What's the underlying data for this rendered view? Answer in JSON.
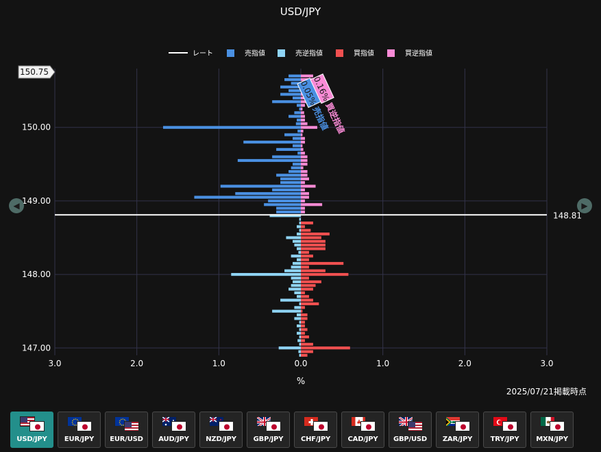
{
  "chart_data": {
    "type": "bar",
    "title": "USD/JPY",
    "xlabel": "%",
    "x_ticks": [
      "3.0",
      "2.0",
      "1.0",
      "0.0",
      "1.0",
      "2.0",
      "3.0"
    ],
    "xlim": [
      -3,
      3
    ],
    "y_ticks": [
      "147.00",
      "148.00",
      "149.00",
      "150.00"
    ],
    "ylim": [
      146.9,
      150.8
    ],
    "grid": true,
    "legend_position": "top",
    "legend": [
      "レート",
      "売指値",
      "売逆指値",
      "買指値",
      "買逆指値"
    ],
    "rate": 148.81,
    "rate_label": "148.81",
    "top_badge": "150.75",
    "annotations": [
      {
        "pct": "0.05%",
        "label": "売指値"
      },
      {
        "pct": "0.16%",
        "label": "買逆指値"
      }
    ],
    "series": [
      {
        "name": "売指値",
        "color": "#4a90e2",
        "side": "left",
        "prices": [
          150.7,
          150.65,
          150.6,
          150.55,
          150.5,
          150.45,
          150.4,
          150.35,
          150.3,
          150.25,
          150.2,
          150.15,
          150.1,
          150.05,
          150.0,
          149.95,
          149.9,
          149.85,
          149.8,
          149.75,
          149.7,
          149.65,
          149.6,
          149.55,
          149.5,
          149.45,
          149.4,
          149.35,
          149.3,
          149.25,
          149.2,
          149.15,
          149.1,
          149.05,
          149.0,
          148.95,
          148.9,
          148.85
        ],
        "values": [
          0.15,
          0.2,
          0.12,
          0.25,
          0.15,
          0.25,
          0.1,
          0.35,
          0.05,
          0.02,
          0.08,
          0.15,
          0.05,
          0.06,
          1.68,
          0.04,
          0.2,
          0.1,
          0.7,
          0.1,
          0.3,
          0.04,
          0.35,
          0.77,
          0.1,
          0.12,
          0.15,
          0.3,
          0.25,
          0.25,
          0.98,
          0.35,
          0.8,
          1.3,
          0.4,
          0.45,
          0.3,
          0.3
        ]
      },
      {
        "name": "売逆指値",
        "color": "#8fd4f5",
        "side": "left",
        "prices": [
          148.8,
          148.75,
          148.7,
          148.65,
          148.6,
          148.55,
          148.5,
          148.45,
          148.4,
          148.35,
          148.3,
          148.25,
          148.2,
          148.15,
          148.1,
          148.05,
          148.0,
          147.95,
          147.9,
          147.85,
          147.8,
          147.75,
          147.7,
          147.65,
          147.6,
          147.55,
          147.5,
          147.45,
          147.4,
          147.35,
          147.3,
          147.25,
          147.2,
          147.15,
          147.1,
          147.05,
          147.0,
          146.95,
          146.9
        ],
        "values": [
          0.38,
          0.02,
          0.02,
          0.05,
          0.02,
          0.05,
          0.18,
          0.1,
          0.08,
          0.05,
          0.03,
          0.12,
          0.05,
          0.1,
          0.12,
          0.2,
          0.85,
          0.12,
          0.1,
          0.12,
          0.15,
          0.08,
          0.05,
          0.25,
          0.02,
          0.08,
          0.35,
          0.05,
          0.08,
          0.02,
          0.05,
          0.02,
          0.05,
          0.02,
          0.04,
          0.02,
          0.27,
          0.03,
          0.02
        ]
      },
      {
        "name": "買指値",
        "color": "#f05050",
        "side": "right",
        "prices": [
          148.7,
          148.65,
          148.6,
          148.55,
          148.5,
          148.45,
          148.4,
          148.35,
          148.3,
          148.25,
          148.2,
          148.15,
          148.1,
          148.05,
          148.0,
          147.95,
          147.9,
          147.85,
          147.8,
          147.75,
          147.7,
          147.65,
          147.6,
          147.55,
          147.5,
          147.45,
          147.4,
          147.35,
          147.3,
          147.25,
          147.2,
          147.15,
          147.1,
          147.05,
          147.0,
          146.95,
          146.9
        ],
        "values": [
          0.15,
          0.05,
          0.12,
          0.35,
          0.25,
          0.3,
          0.3,
          0.3,
          0.1,
          0.15,
          0.1,
          0.52,
          0.1,
          0.3,
          0.58,
          0.1,
          0.25,
          0.18,
          0.15,
          0.05,
          0.1,
          0.15,
          0.22,
          0.05,
          0.02,
          0.08,
          0.08,
          0.05,
          0.05,
          0.08,
          0.05,
          0.1,
          0.05,
          0.15,
          0.6,
          0.15,
          0.08
        ]
      },
      {
        "name": "買逆指値",
        "color": "#f98bd6",
        "side": "right",
        "prices": [
          150.7,
          150.65,
          150.6,
          150.55,
          150.5,
          150.45,
          150.4,
          150.35,
          150.3,
          150.25,
          150.2,
          150.15,
          150.1,
          150.05,
          150.0,
          149.95,
          149.9,
          149.85,
          149.8,
          149.75,
          149.7,
          149.65,
          149.6,
          149.55,
          149.5,
          149.45,
          149.4,
          149.35,
          149.3,
          149.25,
          149.2,
          149.15,
          149.1,
          149.05,
          149.0,
          148.95,
          148.9,
          148.85
        ],
        "values": [
          0.15,
          0.18,
          0.12,
          0.1,
          0.08,
          0.15,
          0.06,
          0.1,
          0.05,
          0.02,
          0.04,
          0.05,
          0.05,
          0.08,
          0.2,
          0.03,
          0.02,
          0.05,
          0.05,
          0.02,
          0.03,
          0.05,
          0.08,
          0.08,
          0.08,
          0.03,
          0.08,
          0.08,
          0.1,
          0.05,
          0.18,
          0.05,
          0.1,
          0.1,
          0.05,
          0.26,
          0.05,
          0.05
        ]
      }
    ]
  },
  "timestamp": "2025/07/21掲載時点",
  "pairs": [
    {
      "label": "USD/JPY",
      "f1": "us",
      "f2": "jp",
      "active": true
    },
    {
      "label": "EUR/JPY",
      "f1": "eu",
      "f2": "jp",
      "active": false
    },
    {
      "label": "EUR/USD",
      "f1": "eu",
      "f2": "us",
      "active": false
    },
    {
      "label": "AUD/JPY",
      "f1": "au",
      "f2": "jp",
      "active": false
    },
    {
      "label": "NZD/JPY",
      "f1": "nz",
      "f2": "jp",
      "active": false
    },
    {
      "label": "GBP/JPY",
      "f1": "gb",
      "f2": "jp",
      "active": false
    },
    {
      "label": "CHF/JPY",
      "f1": "ch",
      "f2": "jp",
      "active": false
    },
    {
      "label": "CAD/JPY",
      "f1": "ca",
      "f2": "jp",
      "active": false
    },
    {
      "label": "GBP/USD",
      "f1": "gb",
      "f2": "us",
      "active": false
    },
    {
      "label": "ZAR/JPY",
      "f1": "za",
      "f2": "jp",
      "active": false
    },
    {
      "label": "TRY/JPY",
      "f1": "tr",
      "f2": "jp",
      "active": false
    },
    {
      "label": "MXN/JPY",
      "f1": "mx",
      "f2": "jp",
      "active": false
    }
  ],
  "nav": {
    "prev_icon": "chevron-left-icon",
    "next_icon": "chevron-right-icon",
    "prev_glyph": "◀",
    "next_glyph": "▶"
  }
}
